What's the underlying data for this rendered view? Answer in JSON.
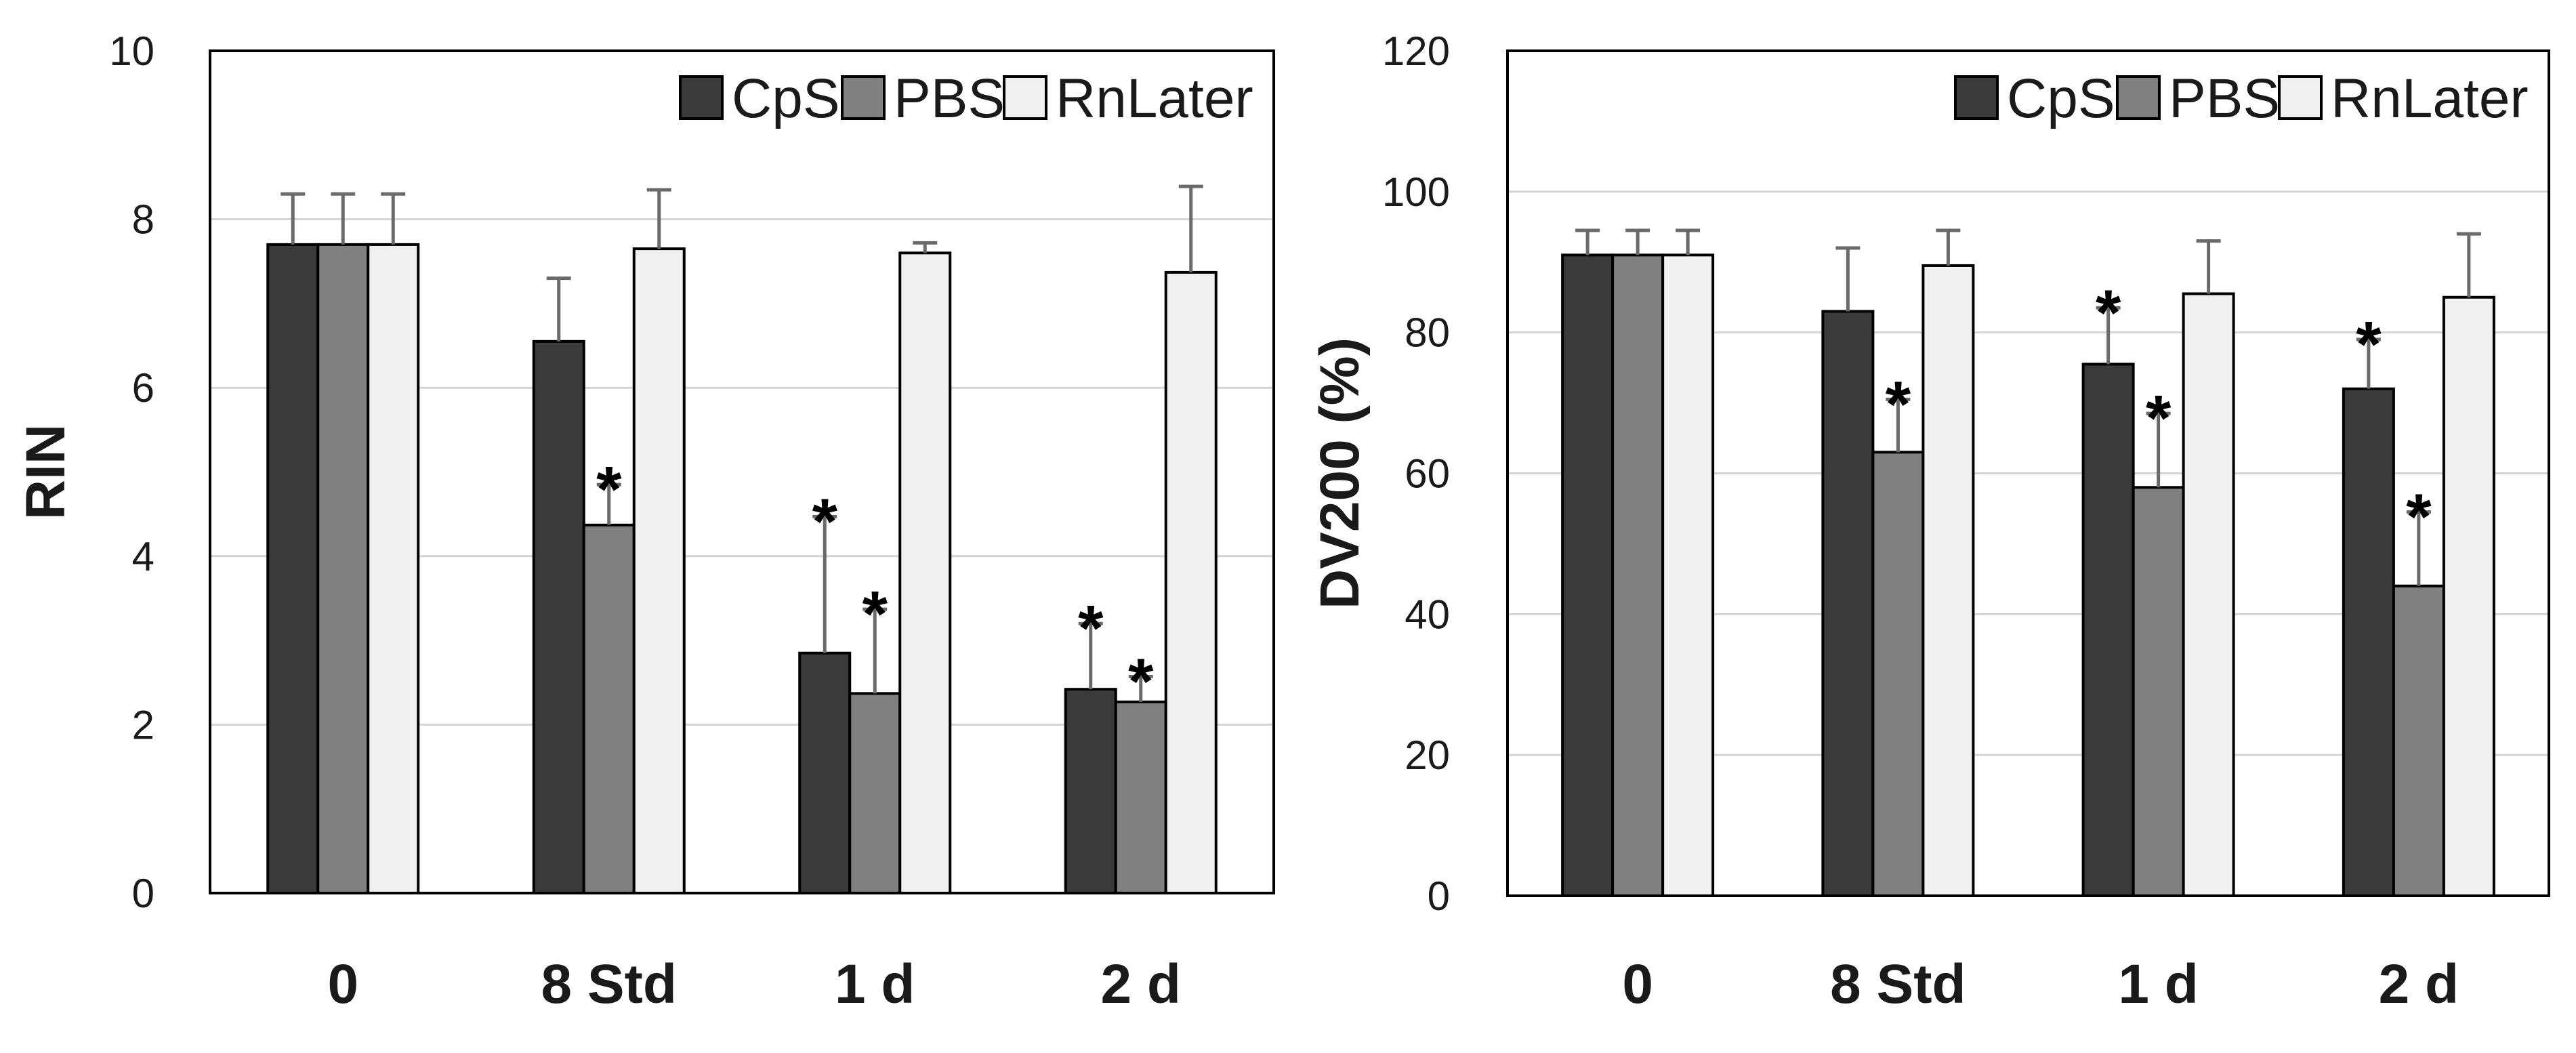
{
  "chart_data": [
    {
      "type": "bar",
      "title": "",
      "xlabel": "",
      "ylabel": "RIN",
      "ylim": [
        0,
        10
      ],
      "yticks": [
        0,
        2,
        4,
        6,
        8,
        10
      ],
      "grid": true,
      "legend_position": "top-right",
      "categories": [
        "0",
        "8 Std",
        "1 d",
        "2 d"
      ],
      "series": [
        {
          "name": "CpS",
          "color": "#3a3a3a",
          "values": [
            7.7,
            6.55,
            2.85,
            2.42
          ],
          "errors": [
            0.6,
            0.75,
            1.62,
            0.78
          ],
          "significant": [
            false,
            false,
            true,
            true
          ]
        },
        {
          "name": "PBS",
          "color": "#808080",
          "values": [
            7.7,
            4.37,
            2.37,
            2.27
          ],
          "errors": [
            0.6,
            0.48,
            1.0,
            0.3
          ],
          "significant": [
            false,
            true,
            true,
            true
          ]
        },
        {
          "name": "RnLater",
          "color": "#f0f0f0",
          "values": [
            7.7,
            7.65,
            7.6,
            7.37
          ],
          "errors": [
            0.6,
            0.7,
            0.12,
            1.02
          ],
          "significant": [
            false,
            false,
            false,
            false
          ]
        }
      ],
      "significance_marker": "*"
    },
    {
      "type": "bar",
      "title": "",
      "xlabel": "",
      "ylabel": "DV200 (%)",
      "ylim": [
        0,
        120
      ],
      "yticks": [
        0,
        20,
        40,
        60,
        80,
        100,
        120
      ],
      "grid": true,
      "legend_position": "top-right",
      "categories": [
        "0",
        "8 Std",
        "1 d",
        "2 d"
      ],
      "series": [
        {
          "name": "CpS",
          "color": "#3a3a3a",
          "values": [
            91,
            83,
            75.5,
            72
          ],
          "errors": [
            3.5,
            9,
            8,
            7
          ],
          "significant": [
            false,
            false,
            true,
            true
          ]
        },
        {
          "name": "PBS",
          "color": "#808080",
          "values": [
            91,
            63,
            58,
            44
          ],
          "errors": [
            3.5,
            7.5,
            10.5,
            10.5
          ],
          "significant": [
            false,
            true,
            true,
            true
          ]
        },
        {
          "name": "RnLater",
          "color": "#f0f0f0",
          "values": [
            91,
            89.5,
            85.5,
            85
          ],
          "errors": [
            3.5,
            5,
            7.5,
            9
          ],
          "significant": [
            false,
            false,
            false,
            false
          ]
        }
      ],
      "significance_marker": "*"
    }
  ]
}
